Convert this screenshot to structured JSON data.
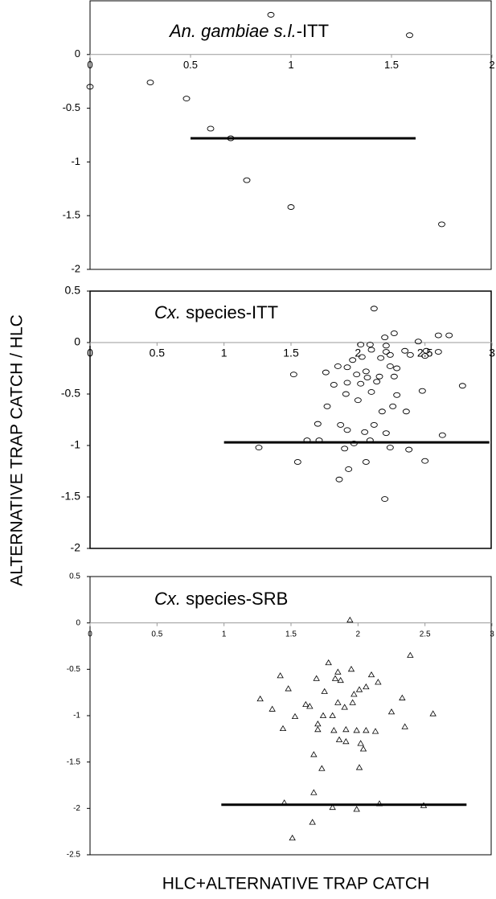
{
  "y_label": "ALTERNATIVE TRAP CATCH / HLC",
  "x_label": "HLC+ALTERNATIVE TRAP CATCH",
  "chart_data": [
    {
      "type": "scatter",
      "title": [
        "An. gambiae s.l.",
        "-ITT"
      ],
      "marker": "circle",
      "xlim": [
        0,
        2
      ],
      "ylim": [
        -2,
        0.5
      ],
      "xticks": [
        0,
        0.5,
        1,
        1.5,
        2
      ],
      "yticks": [
        -2,
        -1.5,
        -1,
        -0.5,
        0
      ],
      "x": [
        0,
        0.3,
        0.48,
        0.6,
        0.7,
        0.78,
        0.9,
        1.0,
        1.59,
        1.75
      ],
      "values": [
        -0.3,
        -0.26,
        -0.41,
        -0.69,
        -0.78,
        -1.17,
        0.37,
        -1.42,
        0.18,
        -1.58
      ],
      "mean_line": {
        "y": -0.78,
        "x": [
          0.5,
          1.62
        ]
      }
    },
    {
      "type": "scatter",
      "title": [
        "Cx.",
        " species-ITT"
      ],
      "marker": "circle",
      "xlim": [
        0,
        3
      ],
      "ylim": [
        -2,
        0.5
      ],
      "xticks": [
        0,
        0.5,
        1,
        1.5,
        2,
        2.5,
        3
      ],
      "yticks": [
        -2,
        -1.5,
        -1,
        -0.5,
        0,
        0.5
      ],
      "x": [
        2.12,
        2.27,
        2.2,
        2.6,
        2.68,
        2.45,
        2.02,
        2.09,
        2.21,
        2.21,
        2.1,
        2.35,
        2.51,
        2.24,
        2.03,
        2.17,
        2.39,
        2.6,
        2.5,
        1.96,
        1.52,
        1.85,
        1.92,
        2.06,
        1.99,
        2.24,
        2.29,
        2.16,
        2.07,
        1.92,
        2.14,
        2.02,
        2.27,
        1.76,
        1.82,
        2.29,
        2.48,
        2.1,
        1.91,
        2.0,
        2.78,
        1.77,
        2.26,
        1.7,
        1.87,
        2.18,
        2.36,
        2.12,
        1.62,
        1.71,
        2.05,
        2.21,
        2.09,
        1.9,
        1.92,
        1.26,
        1.55,
        2.06,
        1.93,
        1.86,
        2.2,
        2.24,
        2.38,
        2.5,
        2.63,
        1.97
      ],
      "values": [
        0.33,
        0.09,
        0.05,
        0.07,
        0.07,
        0.01,
        -0.02,
        -0.02,
        -0.03,
        -0.09,
        -0.07,
        -0.08,
        -0.08,
        -0.12,
        -0.14,
        -0.15,
        -0.12,
        -0.09,
        -0.13,
        -0.17,
        -0.31,
        -0.23,
        -0.24,
        -0.28,
        -0.31,
        -0.23,
        -0.25,
        -0.33,
        -0.34,
        -0.39,
        -0.38,
        -0.4,
        -0.33,
        -0.29,
        -0.41,
        -0.51,
        -0.47,
        -0.48,
        -0.5,
        -0.56,
        -0.42,
        -0.62,
        -0.62,
        -0.79,
        -0.8,
        -0.67,
        -0.67,
        -0.8,
        -0.95,
        -0.95,
        -0.87,
        -0.88,
        -0.95,
        -1.03,
        -0.85,
        -1.02,
        -1.16,
        -1.16,
        -1.23,
        -1.33,
        -1.52,
        -1.02,
        -1.04,
        -1.15,
        -0.9,
        -0.98
      ],
      "mean_line": {
        "y": -0.97,
        "x": [
          1.0,
          2.98
        ]
      }
    },
    {
      "type": "scatter",
      "title": [
        "Cx.",
        " species-SRB"
      ],
      "marker": "triangle",
      "xlim": [
        0,
        3
      ],
      "ylim": [
        -2.5,
        0.5
      ],
      "xticks": [
        0,
        0.5,
        1,
        1.5,
        2,
        2.5,
        3
      ],
      "yticks": [
        -2.5,
        -2,
        -1.5,
        -1,
        -0.5,
        0,
        0.5
      ],
      "x": [
        1.94,
        2.39,
        1.78,
        1.95,
        1.85,
        2.1,
        1.42,
        1.69,
        1.83,
        1.87,
        2.15,
        2.06,
        2.01,
        1.48,
        1.75,
        1.97,
        2.33,
        1.27,
        1.85,
        1.96,
        1.61,
        1.64,
        1.36,
        1.9,
        2.25,
        2.56,
        1.74,
        1.81,
        1.53,
        1.7,
        2.35,
        1.44,
        1.7,
        1.82,
        1.91,
        1.99,
        2.06,
        2.13,
        1.86,
        1.91,
        2.02,
        2.04,
        1.67,
        2.01,
        1.73,
        1.67,
        1.99,
        1.45,
        1.81,
        2.16,
        2.49,
        1.66,
        1.51
      ],
      "values": [
        0.03,
        -0.35,
        -0.43,
        -0.5,
        -0.53,
        -0.56,
        -0.57,
        -0.6,
        -0.6,
        -0.62,
        -0.64,
        -0.69,
        -0.72,
        -0.71,
        -0.74,
        -0.77,
        -0.81,
        -0.82,
        -0.86,
        -0.86,
        -0.88,
        -0.9,
        -0.93,
        -0.91,
        -0.96,
        -0.98,
        -1.0,
        -1.0,
        -1.01,
        -1.09,
        -1.12,
        -1.14,
        -1.15,
        -1.16,
        -1.15,
        -1.16,
        -1.16,
        -1.17,
        -1.26,
        -1.28,
        -1.3,
        -1.36,
        -1.42,
        -1.56,
        -1.57,
        -1.83,
        -2.01,
        -1.94,
        -1.99,
        -1.95,
        -1.97,
        -2.15,
        -2.32
      ],
      "mean_line": {
        "y": -1.96,
        "x": [
          0.98,
          2.81
        ]
      }
    }
  ]
}
